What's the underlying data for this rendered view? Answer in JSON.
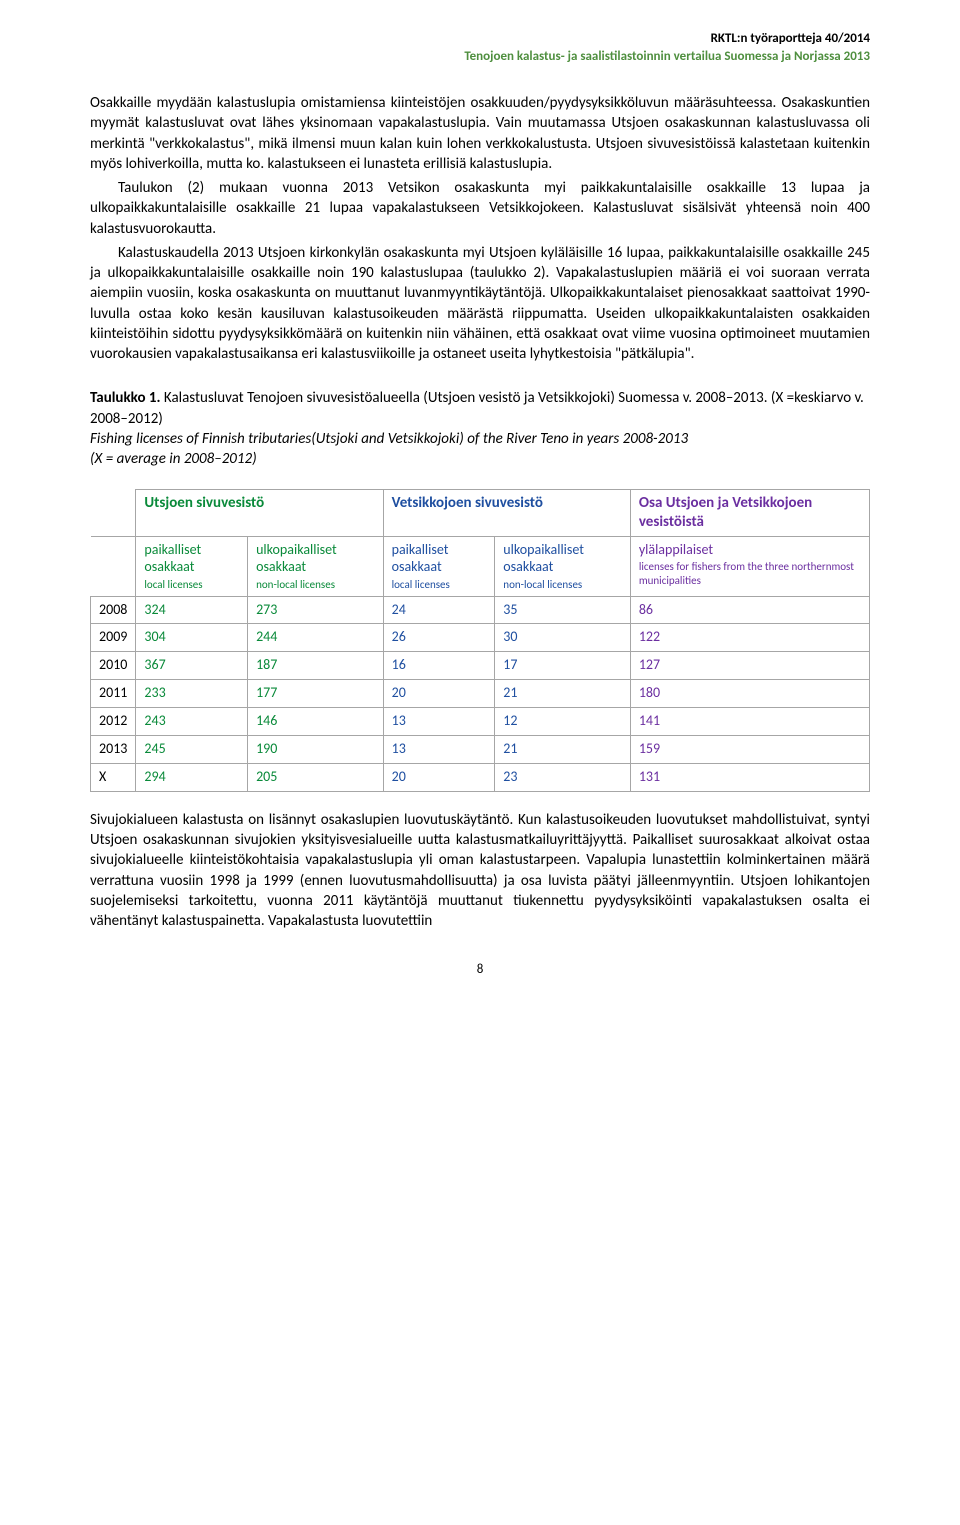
{
  "header": {
    "line1": "RKTL:n työraportteja 40/2014",
    "line2": "Tenojoen kalastus- ja saalistilastoinnin vertailua Suomessa ja Norjassa 2013"
  },
  "colors": {
    "green_header": "#4f8f3f",
    "green_cell": "#0a8a3a",
    "blue_cell": "#1f4fa0",
    "purple_cell": "#6b2fa0",
    "border": "#a6a6a6",
    "text": "#000000",
    "bg": "#ffffff"
  },
  "paragraphs": {
    "p1": "Osakkaille myydään kalastuslupia omistamiensa kiinteistöjen osakkuuden/pyydysyksikköluvun määräsuhteessa. Osakaskuntien myymät kalastusluvat ovat lähes yksinomaan vapakalastuslupia. Vain muutamassa Utsjoen osakaskunnan kalastusluvassa oli merkintä \"verkkokalastus\", mikä ilmensi muun kalan kuin lohen verkkokalustusta. Utsjoen sivuvesistöissä kalastetaan kuitenkin myös lohiverkoilla, mutta ko. kalastukseen ei lunasteta erillisiä kalastuslupia.",
    "p2": "Taulukon (2) mukaan vuonna 2013 Vetsikon osakaskunta myi paikkakuntalaisille osakkaille 13 lupaa ja ulkopaikkakuntalaisille osakkaille 21 lupaa vapakalastukseen Vetsikkojokeen. Kalastusluvat sisälsivät yhteensä noin 400 kalastusvuorokautta.",
    "p3": "Kalastuskaudella 2013 Utsjoen kirkonkylän osakaskunta myi Utsjoen kyläläisille 16 lupaa, paikkakuntalaisille osakkaille 245 ja ulkopaikkakuntalaisille osakkaille noin 190 kalastuslupaa (taulukko 2). Vapakalastuslupien määriä ei voi suoraan verrata aiempiin vuosiin, koska osakaskunta on muuttanut luvanmyyntikäytäntöjä. Ulkopaikkakuntalaiset pienosakkaat saattoivat 1990-luvulla ostaa koko kesän kausiluvan kalastusoikeuden määrästä riippumatta. Useiden ulkopaikkakuntalaisten osakkaiden kiinteistöihin sidottu pyydysyksikkömäärä on kuitenkin niin vähäinen, että osakkaat ovat viime vuosina optimoineet muutamien vuorokausien vapakalastusaikansa eri kalastusviikoille ja ostaneet useita lyhytkestoisia \"pätkälupia\".",
    "p4": "Sivujokialueen kalastusta on lisännyt osakaslupien luovutuskäytäntö. Kun kalastusoikeuden luovutukset mahdollistuivat, syntyi Utsjoen osakaskunnan sivujokien yksityisvesialueille uutta kalastusmatkailuyrittäjyyttä. Paikalliset suurosakkaat alkoivat ostaa sivujokialueelle kiinteistökohtaisia vapakalastuslupia yli oman kalastustarpeen. Vapalupia lunastettiin kolminkertainen määrä verrattuna vuosiin 1998 ja 1999 (ennen luovutusmahdollisuutta) ja osa luvista päätyi jälleenmyyntiin. Utsjoen lohikantojen suojelemiseksi tarkoitettu, vuonna 2011 käytäntöjä muuttanut tiukennettu pyydysyksiköinti vapakalastuksen osalta ei vähentänyt kalastuspainetta. Vapakalastusta luovutettiin"
  },
  "caption": {
    "bold": "Taulukko 1.",
    "rest": " Kalastusluvat Tenojoen sivuvesistöalueella (Utsjoen vesistö ja Vetsikkojoki) Suomessa v. 2008–2013. (X =keskiarvo v. 2008–2012)",
    "italic1": "Fishing licenses of Finnish tributaries(Utsjoki and Vetsikkojoki) of the River Teno in years 2008-2013",
    "italic2": "(X = average in 2008–2012)"
  },
  "table": {
    "group_headers": {
      "g1": "Utsjoen sivuvesistö",
      "g2": "Vetsikkojoen sivuvesistö",
      "g3": "Osa Utsjoen ja Vetsikkojoen vesistöistä"
    },
    "sub_headers": {
      "s1": {
        "fi": "paikalliset osakkaat",
        "en": "local licenses"
      },
      "s2": {
        "fi": "ulkopaikalliset osakkaat",
        "en": "non-local licenses"
      },
      "s3": {
        "fi": "paikalliset osakkaat",
        "en": "local licenses"
      },
      "s4": {
        "fi": "ulkopaikalliset osakkaat",
        "en": "non-local licenses"
      },
      "s5": {
        "fi": "ylälappilaiset",
        "en": "licenses for fishers from the three northernmost municipalities"
      }
    },
    "rows": [
      {
        "year": "2008",
        "v": [
          "324",
          "273",
          "24",
          "35",
          "86"
        ]
      },
      {
        "year": "2009",
        "v": [
          "304",
          "244",
          "26",
          "30",
          "122"
        ]
      },
      {
        "year": "2010",
        "v": [
          "367",
          "187",
          "16",
          "17",
          "127"
        ]
      },
      {
        "year": "2011",
        "v": [
          "233",
          "177",
          "20",
          "21",
          "180"
        ]
      },
      {
        "year": "2012",
        "v": [
          "243",
          "146",
          "13",
          "12",
          "141"
        ]
      },
      {
        "year": "2013",
        "v": [
          "245",
          "190",
          "13",
          "21",
          "159"
        ]
      },
      {
        "year": "X",
        "v": [
          "294",
          "205",
          "20",
          "23",
          "131"
        ]
      }
    ]
  },
  "page_number": "8"
}
